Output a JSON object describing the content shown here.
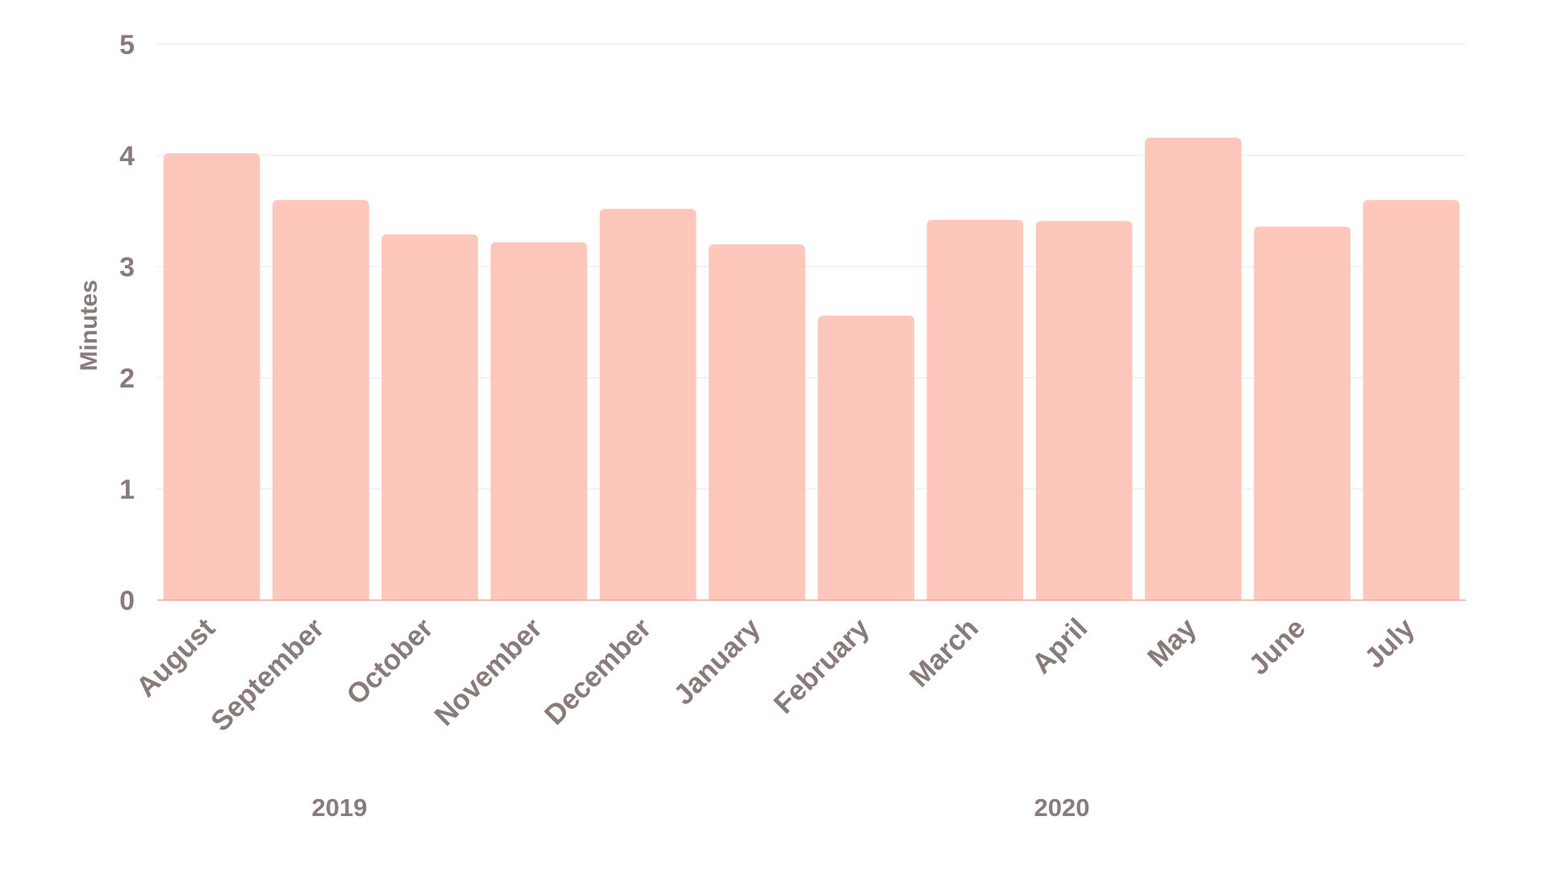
{
  "chart_data": {
    "type": "bar",
    "ylabel": "Minutes",
    "ylim": [
      0,
      5
    ],
    "yticks": [
      "0",
      "1",
      "2",
      "3",
      "4",
      "5"
    ],
    "categories": [
      "August",
      "September",
      "October",
      "November",
      "December",
      "January",
      "February",
      "March",
      "April",
      "May",
      "June",
      "July"
    ],
    "values": [
      4.02,
      3.6,
      3.29,
      3.22,
      3.52,
      3.2,
      2.56,
      3.42,
      3.41,
      4.16,
      3.36,
      3.6
    ],
    "groups": [
      {
        "label": "2019",
        "categories": [
          "August",
          "September",
          "October",
          "November",
          "December"
        ]
      },
      {
        "label": "2020",
        "categories": [
          "January",
          "February",
          "March",
          "April",
          "May",
          "June",
          "July"
        ]
      }
    ],
    "grid": true,
    "legend": "none",
    "colors": {
      "bar": "#fec7bc",
      "grid": "#ececec",
      "baseline": "#f2a99a",
      "text": "#8a7b7b"
    }
  }
}
